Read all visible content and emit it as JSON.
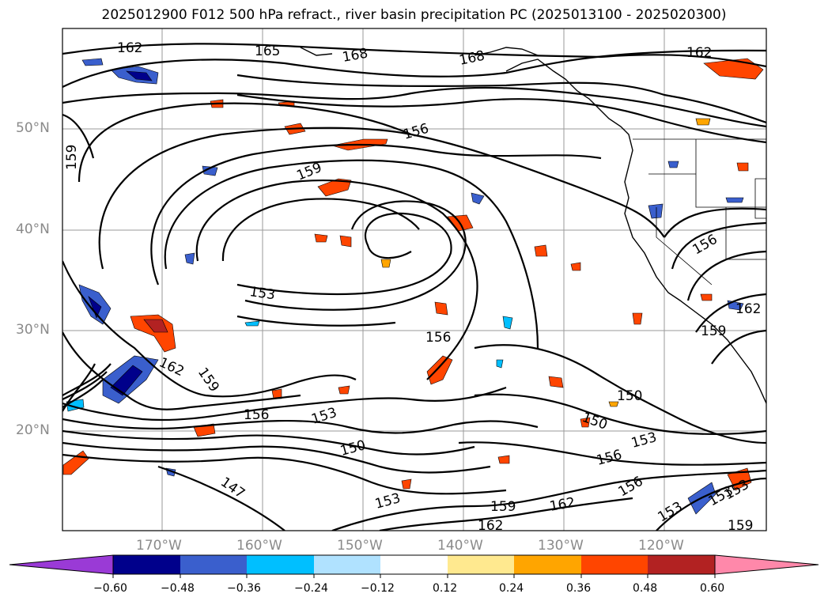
{
  "title": "2025012900 F012 500 hPa refract., river basin precipitation PC (2025013100 - 2025020300)",
  "map": {
    "lat_labels": [
      "50°N",
      "40°N",
      "30°N",
      "20°N"
    ],
    "lon_labels": [
      "170°W",
      "160°W",
      "150°W",
      "140°W",
      "130°W",
      "120°W"
    ],
    "contour_labels": [
      "162",
      "165",
      "168",
      "168",
      "162",
      "156",
      "159",
      "159",
      "153",
      "156",
      "156",
      "162",
      "159",
      "162",
      "159",
      "156",
      "153",
      "150",
      "150",
      "150",
      "153",
      "156",
      "156",
      "153",
      "147",
      "153",
      "159",
      "162",
      "162",
      "153",
      "153",
      "159"
    ]
  },
  "colorbar": {
    "ticks": [
      "−0.60",
      "−0.48",
      "−0.36",
      "−0.24",
      "−0.12",
      "0.12",
      "0.24",
      "0.36",
      "0.48",
      "0.60"
    ],
    "colors": [
      "#9a3ad6",
      "#00008b",
      "#3a5fcd",
      "#00bfff",
      "#b0e2ff",
      "#ffffff",
      "#ffe98f",
      "#ffa500",
      "#ff4500",
      "#b22222",
      "#ff88aa"
    ]
  }
}
